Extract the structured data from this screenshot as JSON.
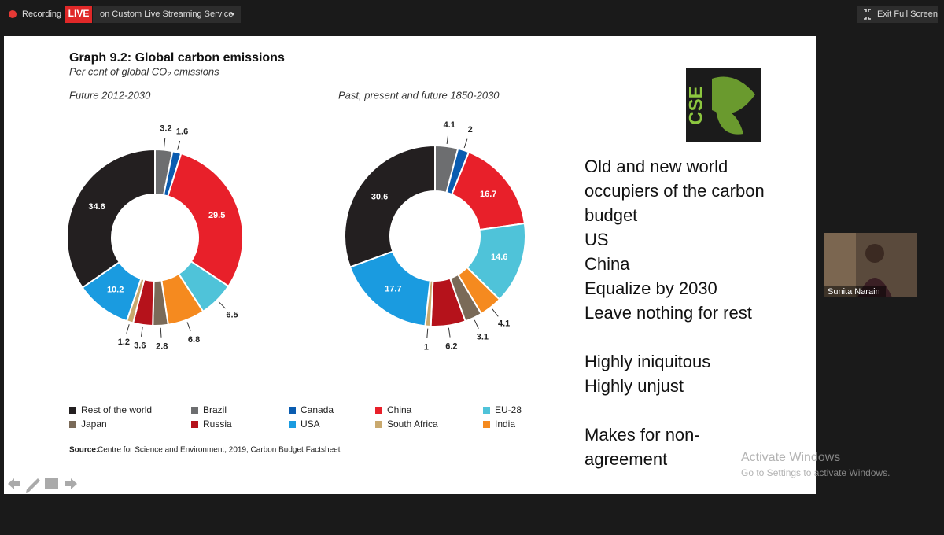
{
  "toolbar": {
    "recording": "Recording",
    "live": "LIVE",
    "stream": "on Custom Live Streaming Service",
    "exit": "Exit Full Screen"
  },
  "slide": {
    "title": "Graph 9.2: Global carbon emissions",
    "subtitle": "Per cent of global CO₂ emissions",
    "source_label": "Source:",
    "source": "Centre for Science and Environment, 2019, Carbon Budget Factsheet",
    "logo": "CSE",
    "text_blocks": [
      [
        "Old and new world",
        "occupiers of the carbon",
        "budget",
        "US",
        "China",
        "Equalize by 2030",
        "Leave nothing for rest"
      ],
      [
        "Highly iniquitous",
        "Highly unjust"
      ],
      [
        "Makes for non-",
        "agreement"
      ]
    ]
  },
  "video": {
    "name": "Sunita Narain"
  },
  "watermark": {
    "title": "Activate Windows",
    "text": "Go to Settings to activate Windows."
  },
  "chart_data": {
    "type": "donut",
    "categories": [
      "Brazil",
      "Canada",
      "China",
      "EU-28",
      "India",
      "Japan",
      "Russia",
      "South Africa",
      "USA",
      "Rest of the world"
    ],
    "colors": [
      "#6d6e70",
      "#0a5cb0",
      "#e8202a",
      "#4fc3d9",
      "#f58a1f",
      "#7a6a58",
      "#b5121b",
      "#c9a96e",
      "#1a9be0",
      "#231f20"
    ],
    "series": [
      {
        "name": "Future 2012-2030",
        "values": [
          3.2,
          1.6,
          29.5,
          6.5,
          6.8,
          2.8,
          3.6,
          1.2,
          10.2,
          34.6
        ]
      },
      {
        "name": "Past, present and future 1850-2030",
        "values": [
          4.1,
          2,
          16.7,
          14.6,
          4.1,
          3.1,
          6.2,
          1,
          17.7,
          30.6
        ]
      }
    ]
  }
}
